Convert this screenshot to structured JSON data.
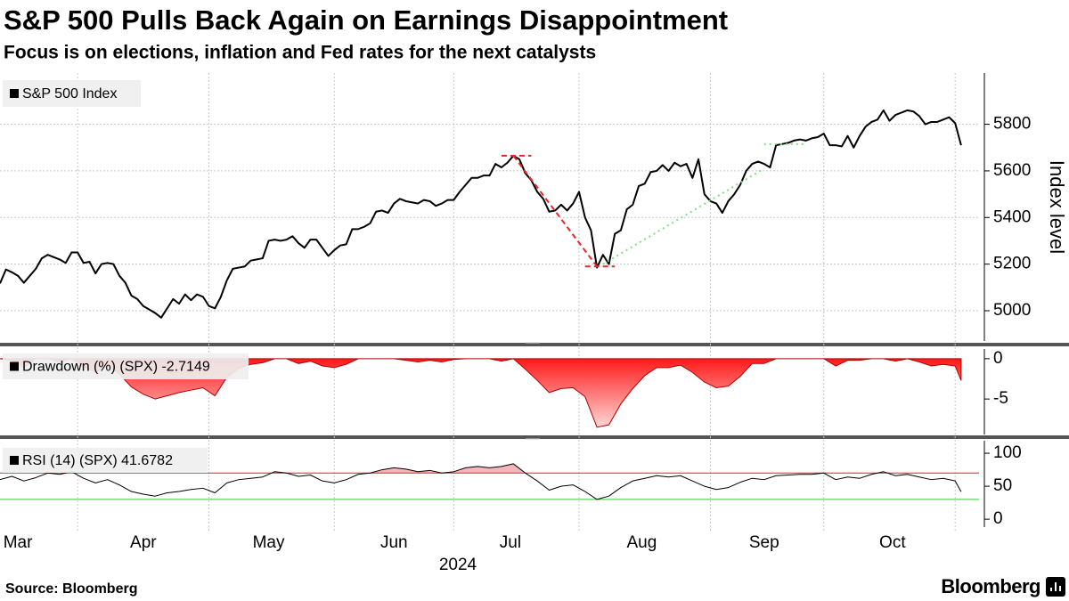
{
  "title": "S&P 500 Pulls Back Again on Earnings Disappointment",
  "subtitle": "Focus is on elections, inflation and Fed rates for the next catalysts",
  "source": "Source: Bloomberg",
  "brand": "Bloomberg",
  "chart_data": [
    {
      "type": "line",
      "ylabel": "Index level",
      "xlim": [
        0,
        164
      ],
      "ylim": [
        4870,
        6020
      ],
      "yticks": [
        5000,
        5200,
        5400,
        5600,
        5800
      ],
      "grid": true,
      "x": [
        0,
        1,
        2,
        3,
        4,
        5,
        6,
        7,
        8,
        9,
        10,
        11,
        12,
        13,
        14,
        15,
        16,
        17,
        18,
        19,
        20,
        21,
        22,
        23,
        24,
        25,
        26,
        27,
        28,
        29,
        30,
        31,
        32,
        33,
        34,
        35,
        36,
        37,
        38,
        39,
        40,
        41,
        42,
        43,
        44,
        45,
        46,
        47,
        48,
        49,
        50,
        51,
        52,
        53,
        54,
        55,
        56,
        57,
        58,
        59,
        60,
        61,
        62,
        63,
        64,
        65,
        66,
        67,
        68,
        69,
        70,
        71,
        72,
        73,
        74,
        75,
        76,
        77,
        78,
        79,
        80,
        81,
        82,
        83,
        84,
        85,
        86,
        87,
        88,
        89,
        90,
        91,
        92,
        93,
        94,
        95,
        96,
        97,
        98,
        99,
        100,
        101,
        102,
        103,
        104,
        105,
        106,
        107,
        108,
        109,
        110,
        111,
        112,
        113,
        114,
        115,
        116,
        117,
        118,
        119,
        120,
        121,
        122,
        123,
        124,
        125,
        126,
        127,
        128,
        129,
        130,
        131,
        132,
        133,
        134,
        135,
        136,
        137,
        138,
        139,
        140,
        141,
        142,
        143,
        144,
        145,
        146,
        147,
        148,
        149,
        150,
        151,
        152,
        153,
        154,
        155,
        156,
        157,
        158,
        159,
        160,
        161
      ],
      "series": [
        {
          "name": "S&P 500 Index",
          "color": "#000000",
          "values": [
            5117,
            5177,
            5165,
            5150,
            5120,
            5150,
            5180,
            5225,
            5240,
            5230,
            5220,
            5205,
            5250,
            5250,
            5205,
            5210,
            5160,
            5200,
            5205,
            5200,
            5150,
            5120,
            5065,
            5050,
            5020,
            5005,
            4990,
            4970,
            5010,
            5050,
            5030,
            5070,
            5045,
            5070,
            5060,
            5020,
            5010,
            5060,
            5130,
            5180,
            5185,
            5190,
            5215,
            5220,
            5225,
            5300,
            5305,
            5300,
            5305,
            5320,
            5290,
            5270,
            5305,
            5305,
            5270,
            5235,
            5260,
            5280,
            5285,
            5350,
            5350,
            5360,
            5375,
            5425,
            5430,
            5420,
            5460,
            5480,
            5470,
            5465,
            5460,
            5475,
            5470,
            5450,
            5460,
            5475,
            5475,
            5510,
            5540,
            5570,
            5570,
            5580,
            5580,
            5630,
            5615,
            5635,
            5665,
            5650,
            5590,
            5560,
            5510,
            5480,
            5425,
            5430,
            5455,
            5430,
            5460,
            5510,
            5400,
            5345,
            5185,
            5240,
            5200,
            5330,
            5345,
            5435,
            5455,
            5535,
            5545,
            5595,
            5600,
            5625,
            5600,
            5635,
            5620,
            5630,
            5570,
            5650,
            5500,
            5470,
            5460,
            5420,
            5470,
            5500,
            5540,
            5600,
            5630,
            5640,
            5630,
            5615,
            5710,
            5715,
            5720,
            5730,
            5735,
            5730,
            5740,
            5745,
            5760,
            5710,
            5710,
            5705,
            5750,
            5700,
            5750,
            5790,
            5810,
            5820,
            5860,
            5815,
            5840,
            5850,
            5860,
            5855,
            5835,
            5800,
            5810,
            5810,
            5820,
            5830,
            5805,
            5710
          ]
        }
      ],
      "annotations": [
        {
          "color": "#e8262b",
          "style": "dashed",
          "points": [
            [
              84,
              5665
            ],
            [
              89,
              5665
            ]
          ]
        },
        {
          "color": "#e8262b",
          "style": "dashed",
          "points": [
            [
              86,
              5665
            ],
            [
              100,
              5190
            ]
          ]
        },
        {
          "color": "#e8262b",
          "style": "dashed",
          "points": [
            [
              98,
              5190
            ],
            [
              103,
              5190
            ]
          ]
        },
        {
          "color": "#7ee07e",
          "style": "dotted",
          "points": [
            [
              101,
              5200
            ],
            [
              128,
              5610
            ]
          ]
        },
        {
          "color": "#7ee07e",
          "style": "dotted",
          "points": [
            [
              128,
              5715
            ],
            [
              135,
              5715
            ]
          ]
        }
      ]
    },
    {
      "type": "area",
      "xlim": [
        0,
        164
      ],
      "ylim": [
        -9.4,
        1.2
      ],
      "yticks": [
        0,
        -5
      ],
      "x": [
        0,
        2,
        4,
        6,
        8,
        10,
        12,
        14,
        16,
        18,
        20,
        22,
        24,
        26,
        28,
        30,
        32,
        34,
        36,
        38,
        40,
        42,
        44,
        46,
        48,
        50,
        52,
        54,
        56,
        58,
        60,
        62,
        64,
        66,
        68,
        70,
        72,
        74,
        76,
        78,
        80,
        82,
        84,
        86,
        88,
        90,
        92,
        94,
        96,
        98,
        100,
        102,
        104,
        106,
        108,
        110,
        112,
        114,
        116,
        118,
        120,
        122,
        124,
        126,
        128,
        130,
        132,
        134,
        136,
        138,
        140,
        142,
        144,
        146,
        148,
        150,
        152,
        154,
        156,
        158,
        160,
        161
      ],
      "series": [
        {
          "name": "Drawdown (%) (SPX) -2.7149",
          "color": "#ff0000",
          "values": [
            0,
            -0.2,
            -1.1,
            0,
            0,
            -0.4,
            0,
            -0.9,
            -1.7,
            -0.9,
            -1.9,
            -3.5,
            -4.4,
            -5,
            -4.6,
            -4.2,
            -3.9,
            -3.6,
            -4.6,
            -2.3,
            -1.2,
            -0.7,
            -0.5,
            0,
            0,
            -0.6,
            -0.3,
            -0.9,
            -1.1,
            -0.7,
            0,
            0,
            0,
            0,
            -0.2,
            -0.4,
            -0.2,
            -0.4,
            -0.1,
            0,
            0,
            0,
            -0.3,
            0,
            -1.3,
            -2.7,
            -4.2,
            -3.7,
            -3.6,
            -4.7,
            -8.5,
            -8.2,
            -5.6,
            -3.7,
            -2.1,
            -1.1,
            -1.1,
            -0.8,
            -1.7,
            -2.9,
            -3.6,
            -3.4,
            -2.2,
            -0.6,
            -0.6,
            0,
            0,
            0,
            0,
            0,
            -0.9,
            -0.2,
            -0.2,
            0,
            0,
            -0.3,
            0,
            -0.4,
            -0.9,
            -0.7,
            -0.9,
            -2.7
          ]
        }
      ]
    },
    {
      "type": "line",
      "xlim": [
        0,
        164
      ],
      "ylim": [
        -12,
        119
      ],
      "yticks": [
        0,
        50,
        100
      ],
      "xticks": [
        {
          "value": 3,
          "label": "Mar"
        },
        {
          "value": 24,
          "label": "Apr"
        },
        {
          "value": 45,
          "label": "May"
        },
        {
          "value": 66,
          "label": "Jun"
        },
        {
          "value": 85.5,
          "label": "Jul"
        },
        {
          "value": 107.5,
          "label": "Aug"
        },
        {
          "value": 128,
          "label": "Sep"
        },
        {
          "value": 149.5,
          "label": "Oct"
        }
      ],
      "xgrid": [
        13,
        35,
        56,
        76,
        97,
        119,
        138,
        160
      ],
      "xlabel": "2024",
      "thresholds": [
        {
          "value": 70,
          "color": "#d62728",
          "fill": "#f4b6bd"
        },
        {
          "value": 30,
          "color": "#34c934"
        }
      ],
      "x": [
        0,
        2,
        4,
        6,
        8,
        10,
        12,
        14,
        16,
        18,
        20,
        22,
        24,
        26,
        28,
        30,
        32,
        34,
        36,
        38,
        40,
        42,
        44,
        46,
        48,
        50,
        52,
        54,
        56,
        58,
        60,
        62,
        64,
        66,
        68,
        70,
        72,
        74,
        76,
        78,
        80,
        82,
        84,
        86,
        88,
        90,
        92,
        94,
        96,
        98,
        100,
        102,
        104,
        106,
        108,
        110,
        112,
        114,
        116,
        118,
        120,
        122,
        124,
        126,
        128,
        130,
        132,
        134,
        136,
        138,
        140,
        142,
        144,
        146,
        148,
        150,
        152,
        154,
        156,
        158,
        160,
        161
      ],
      "series": [
        {
          "name": "RSI (14) (SPX) 41.6782",
          "color": "#000000",
          "values": [
            60,
            65,
            58,
            63,
            70,
            68,
            72,
            62,
            55,
            60,
            52,
            42,
            38,
            35,
            40,
            42,
            45,
            47,
            40,
            55,
            60,
            62,
            64,
            72,
            70,
            65,
            67,
            58,
            55,
            60,
            68,
            70,
            75,
            78,
            76,
            72,
            74,
            70,
            72,
            78,
            80,
            78,
            80,
            84,
            70,
            58,
            44,
            50,
            52,
            42,
            30,
            35,
            48,
            58,
            62,
            66,
            64,
            66,
            58,
            50,
            45,
            48,
            56,
            62,
            60,
            66,
            67,
            68,
            68,
            70,
            60,
            64,
            62,
            68,
            72,
            66,
            68,
            64,
            60,
            62,
            58,
            41.6782
          ]
        }
      ]
    }
  ]
}
